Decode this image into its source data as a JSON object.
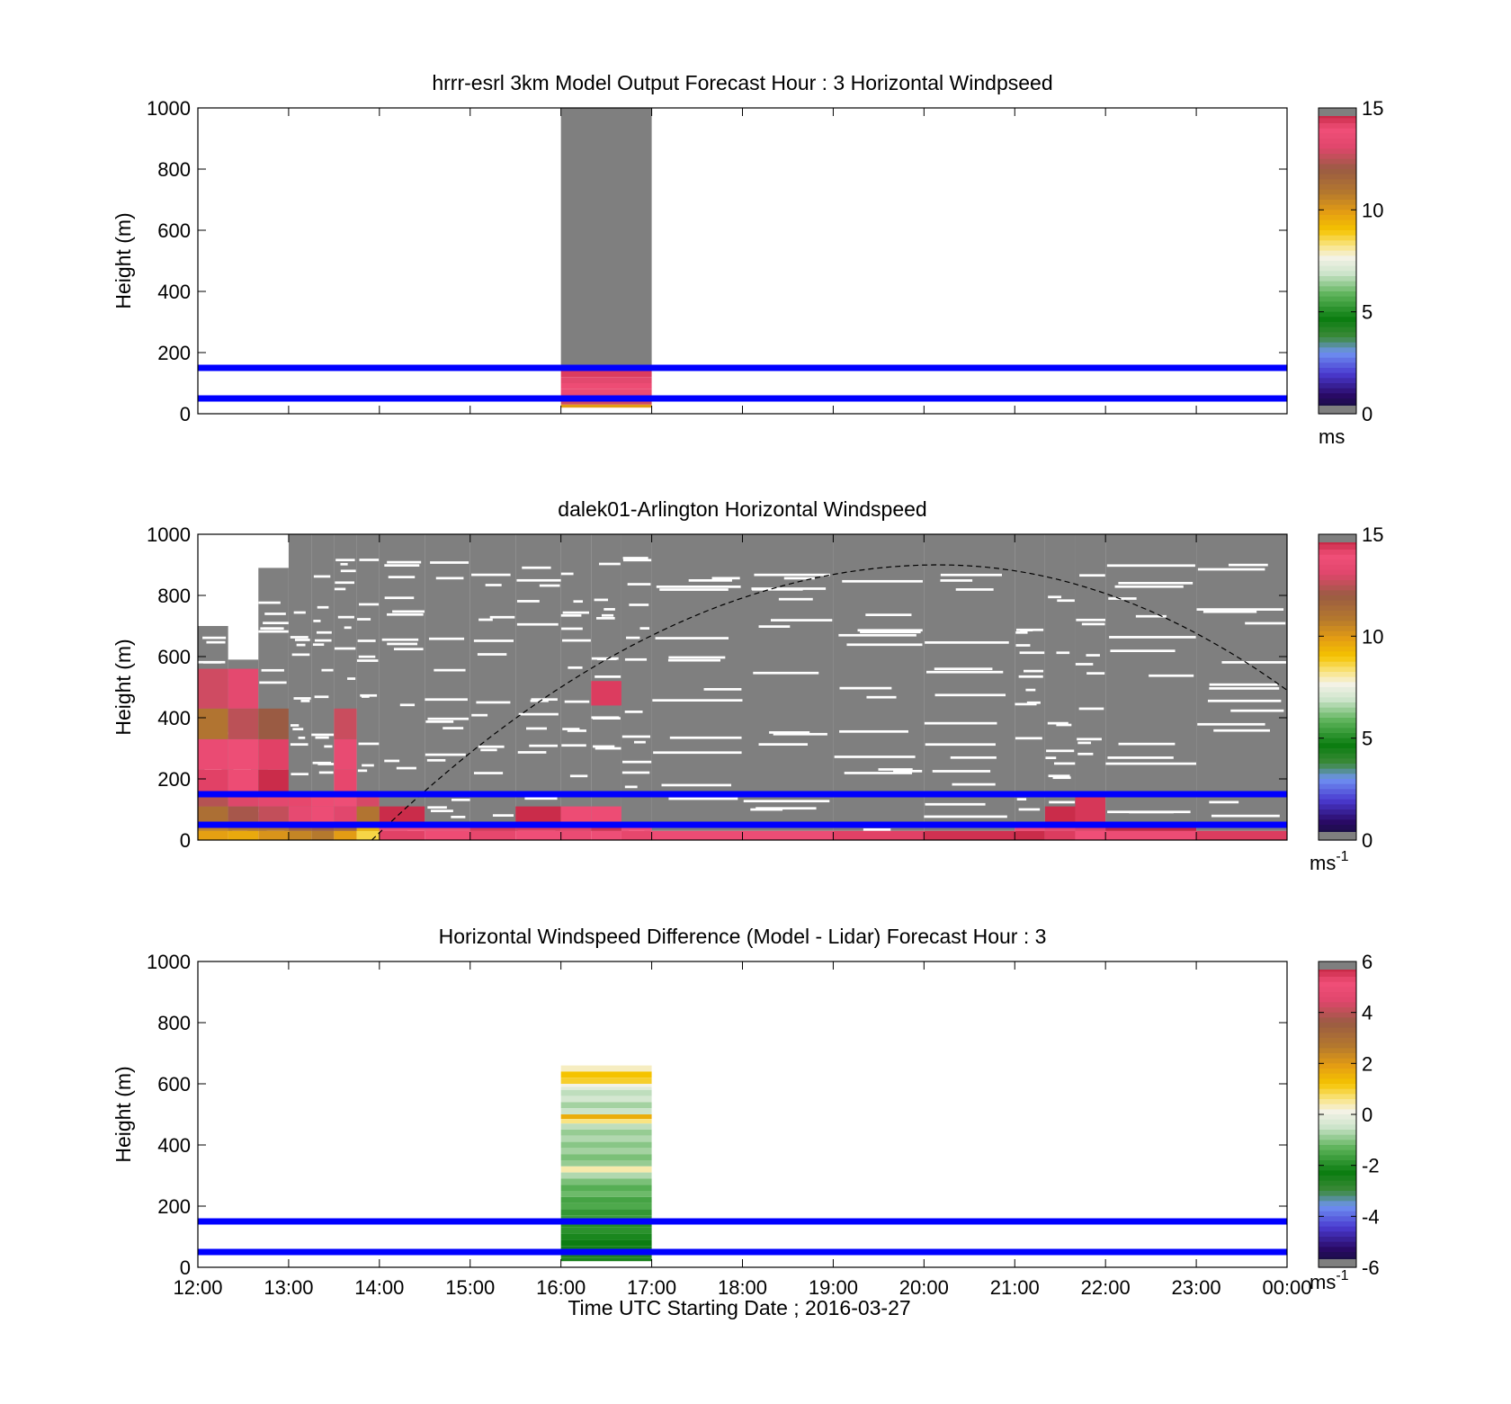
{
  "figure": {
    "xlabel": "Time UTC  Starting Date ; 2016-03-27",
    "x_ticks": [
      "12:00",
      "13:00",
      "14:00",
      "15:00",
      "16:00",
      "17:00",
      "18:00",
      "19:00",
      "20:00",
      "21:00",
      "22:00",
      "23:00",
      "00:00"
    ]
  },
  "chart_data": [
    {
      "type": "heatmap",
      "title": "hrrr-esrl 3km Model Output   Forecast Hour : 3 Horizontal Windpseed",
      "ylabel": "Height (m)",
      "xlim": [
        "12:00",
        "00:00"
      ],
      "ylim": [
        0,
        1000
      ],
      "y_ticks": [
        0,
        200,
        400,
        600,
        800,
        1000
      ],
      "colorbar": {
        "min": 0,
        "max": 15,
        "ticks": [
          0,
          5,
          10,
          15
        ],
        "unit": "ms",
        "unit_sup": ""
      },
      "reference_lines_m": [
        50,
        150
      ],
      "columns": [
        {
          "x_start": "16:00",
          "x_end": "17:00",
          "cells": [
            {
              "y0": 160,
              "y1": 1000,
              "value": "missing"
            },
            {
              "y0": 140,
              "y1": 160,
              "value": 13.5
            },
            {
              "y0": 120,
              "y1": 140,
              "value": 14.3
            },
            {
              "y0": 100,
              "y1": 120,
              "value": 13.2
            },
            {
              "y0": 80,
              "y1": 100,
              "value": 14.0
            },
            {
              "y0": 60,
              "y1": 80,
              "value": 13.6
            },
            {
              "y0": 40,
              "y1": 60,
              "value": 13.1
            },
            {
              "y0": 30,
              "y1": 40,
              "value": 12.8
            },
            {
              "y0": 20,
              "y1": 30,
              "value": 9.9
            }
          ]
        }
      ]
    },
    {
      "type": "heatmap",
      "title": "dalek01-Arlington  Horizontal Windspeed",
      "ylabel": "Height (m)",
      "xlim": [
        "12:00",
        "00:00"
      ],
      "ylim": [
        0,
        1000
      ],
      "y_ticks": [
        0,
        200,
        400,
        600,
        800,
        1000
      ],
      "colorbar": {
        "min": 0,
        "max": 15,
        "ticks": [
          0,
          5,
          10,
          15
        ],
        "unit": "ms",
        "unit_sup": "-1"
      },
      "reference_lines_m": [
        50,
        150
      ],
      "curve_peak": {
        "time": "20:10",
        "height": 900
      },
      "curve_ends": [
        {
          "time": "13:55",
          "height": 0
        },
        {
          "time": "00:00",
          "height": 490
        }
      ],
      "columns": [
        {
          "x_start": "12:00",
          "x_end": "12:20",
          "top": 700,
          "low_profile": [
            [
              0,
              30,
              9.8
            ],
            [
              30,
              60,
              10.5
            ],
            [
              60,
              110,
              11.2
            ],
            [
              110,
              160,
              12.4
            ],
            [
              160,
              230,
              14.2
            ],
            [
              230,
              330,
              13.6
            ],
            [
              330,
              430,
              11.0
            ],
            [
              430,
              560,
              12.8
            ]
          ]
        },
        {
          "x_start": "12:20",
          "x_end": "12:40",
          "top": 590,
          "low_profile": [
            [
              0,
              30,
              9.6
            ],
            [
              30,
              60,
              10.8
            ],
            [
              60,
              110,
              12.2
            ],
            [
              110,
              160,
              13.0
            ],
            [
              160,
              230,
              14.0
            ],
            [
              230,
              330,
              13.8
            ],
            [
              330,
              430,
              12.5
            ],
            [
              430,
              560,
              13.3
            ]
          ]
        },
        {
          "x_start": "12:40",
          "x_end": "13:00",
          "top": 890,
          "low_profile": [
            [
              0,
              30,
              10.1
            ],
            [
              30,
              60,
              11.0
            ],
            [
              60,
              110,
              12.6
            ],
            [
              110,
              160,
              13.2
            ],
            [
              160,
              230,
              14.6
            ],
            [
              230,
              330,
              14.2
            ],
            [
              330,
              430,
              12.0
            ]
          ]
        },
        {
          "x_start": "13:00",
          "x_end": "13:15",
          "top": 1000,
          "low_profile": [
            [
              0,
              30,
              10.5
            ],
            [
              30,
              60,
              11.8
            ],
            [
              60,
              110,
              13.4
            ],
            [
              110,
              160,
              14.1
            ]
          ]
        },
        {
          "x_start": "13:15",
          "x_end": "13:30",
          "top": 1000,
          "low_profile": [
            [
              0,
              30,
              10.8
            ],
            [
              30,
              60,
              12.0
            ],
            [
              60,
              110,
              13.7
            ],
            [
              110,
              160,
              14.0
            ]
          ]
        },
        {
          "x_start": "13:30",
          "x_end": "13:45",
          "top": 1000,
          "low_profile": [
            [
              0,
              30,
              9.9
            ],
            [
              30,
              60,
              11.5
            ],
            [
              60,
              110,
              13.1
            ],
            [
              110,
              160,
              13.8
            ],
            [
              160,
              230,
              14.1
            ],
            [
              230,
              330,
              13.5
            ],
            [
              330,
              430,
              12.7
            ]
          ]
        },
        {
          "x_start": "13:45",
          "x_end": "14:00",
          "top": 1000,
          "low_profile": [
            [
              0,
              30,
              8.6
            ],
            [
              30,
              60,
              9.4
            ],
            [
              60,
              110,
              11.0
            ],
            [
              110,
              160,
              12.9
            ]
          ]
        },
        {
          "x_start": "14:00",
          "x_end": "14:30",
          "top": 1000,
          "low_profile": [
            [
              0,
              30,
              14.2
            ],
            [
              30,
              60,
              13.8
            ],
            [
              60,
              110,
              14.6
            ]
          ]
        },
        {
          "x_start": "14:30",
          "x_end": "15:00",
          "top": 1000,
          "low_profile": [
            [
              0,
              30,
              14.0
            ],
            [
              30,
              60,
              13.7
            ]
          ]
        },
        {
          "x_start": "15:00",
          "x_end": "15:30",
          "top": 1000,
          "low_profile": [
            [
              0,
              30,
              14.1
            ],
            [
              30,
              60,
              14.4
            ]
          ]
        },
        {
          "x_start": "15:30",
          "x_end": "16:00",
          "top": 1000,
          "low_profile": [
            [
              0,
              30,
              13.9
            ],
            [
              30,
              60,
              14.3
            ],
            [
              60,
              110,
              14.6
            ]
          ]
        },
        {
          "x_start": "16:00",
          "x_end": "16:20",
          "top": 1000,
          "low_profile": [
            [
              0,
              30,
              13.6
            ],
            [
              30,
              60,
              14.2
            ],
            [
              60,
              110,
              14.0
            ]
          ]
        },
        {
          "x_start": "16:20",
          "x_end": "16:40",
          "top": 1000,
          "low_profile": [
            [
              0,
              30,
              13.8
            ],
            [
              30,
              60,
              14.5
            ],
            [
              60,
              110,
              14.0
            ],
            [
              440,
              520,
              14.3
            ]
          ]
        },
        {
          "x_start": "16:40",
          "x_end": "17:00",
          "top": 1000,
          "low_profile": [
            [
              0,
              30,
              14.1
            ],
            [
              30,
              60,
              13.9
            ]
          ]
        },
        {
          "x_start": "17:00",
          "x_end": "18:00",
          "top": 1000,
          "low_profile": [
            [
              0,
              30,
              14.0
            ]
          ]
        },
        {
          "x_start": "18:00",
          "x_end": "19:00",
          "top": 1000,
          "low_profile": [
            [
              0,
              30,
              13.7
            ]
          ]
        },
        {
          "x_start": "19:00",
          "x_end": "20:00",
          "top": 1000,
          "low_profile": [
            [
              0,
              30,
              14.2
            ]
          ]
        },
        {
          "x_start": "20:00",
          "x_end": "21:00",
          "top": 1000,
          "low_profile": [
            [
              0,
              30,
              14.5
            ]
          ]
        },
        {
          "x_start": "21:00",
          "x_end": "21:20",
          "top": 1000,
          "low_profile": [
            [
              0,
              30,
              14.6
            ],
            [
              30,
              60,
              14.0
            ]
          ]
        },
        {
          "x_start": "21:20",
          "x_end": "21:40",
          "top": 1000,
          "low_profile": [
            [
              0,
              30,
              14.3
            ],
            [
              30,
              60,
              14.1
            ],
            [
              60,
              110,
              14.6
            ]
          ]
        },
        {
          "x_start": "21:40",
          "x_end": "22:00",
          "top": 1000,
          "low_profile": [
            [
              0,
              30,
              13.9
            ],
            [
              30,
              60,
              14.2
            ],
            [
              60,
              140,
              14.4
            ]
          ]
        },
        {
          "x_start": "22:00",
          "x_end": "23:00",
          "top": 1000,
          "low_profile": [
            [
              0,
              30,
              14.0
            ],
            [
              30,
              60,
              14.7
            ]
          ]
        },
        {
          "x_start": "23:00",
          "x_end": "00:00",
          "top": 1000,
          "low_profile": [
            [
              0,
              30,
              14.3
            ]
          ]
        }
      ]
    },
    {
      "type": "heatmap",
      "title": "Horizontal Windspeed Difference (Model - Lidar) Forecast Hour : 3",
      "ylabel": "Height (m)",
      "xlim": [
        "12:00",
        "00:00"
      ],
      "ylim": [
        0,
        1000
      ],
      "y_ticks": [
        0,
        200,
        400,
        600,
        800,
        1000
      ],
      "colorbar": {
        "min": -6,
        "max": 6,
        "ticks": [
          -6,
          -4,
          -2,
          0,
          2,
          4,
          6
        ],
        "unit": "ms",
        "unit_sup": "-1"
      },
      "reference_lines_m": [
        50,
        150
      ],
      "columns": [
        {
          "x_start": "16:00",
          "x_end": "17:00",
          "profile": [
            [
              640,
              660,
              0.3
            ],
            [
              620,
              640,
              1.2
            ],
            [
              600,
              620,
              1.0
            ],
            [
              590,
              600,
              0.1
            ],
            [
              580,
              590,
              -0.2
            ],
            [
              560,
              580,
              -0.6
            ],
            [
              540,
              560,
              -0.4
            ],
            [
              520,
              540,
              -0.8
            ],
            [
              500,
              520,
              -0.5
            ],
            [
              485,
              500,
              1.6
            ],
            [
              470,
              485,
              0.6
            ],
            [
              450,
              470,
              -0.6
            ],
            [
              430,
              450,
              -0.9
            ],
            [
              410,
              430,
              -0.7
            ],
            [
              390,
              410,
              -1.0
            ],
            [
              370,
              390,
              -0.8
            ],
            [
              350,
              370,
              -1.1
            ],
            [
              330,
              350,
              -0.9
            ],
            [
              310,
              330,
              0.4
            ],
            [
              290,
              310,
              -0.7
            ],
            [
              270,
              290,
              -1.1
            ],
            [
              250,
              270,
              -1.4
            ],
            [
              230,
              250,
              -1.2
            ],
            [
              210,
              230,
              -1.6
            ],
            [
              190,
              210,
              -1.5
            ],
            [
              170,
              190,
              -1.8
            ],
            [
              150,
              170,
              -1.7
            ],
            [
              130,
              150,
              -2.0
            ],
            [
              110,
              130,
              -1.9
            ],
            [
              90,
              110,
              -2.1
            ],
            [
              70,
              90,
              -2.3
            ],
            [
              50,
              70,
              -2.4
            ],
            [
              30,
              50,
              -2.6
            ],
            [
              20,
              30,
              -2.5
            ]
          ]
        }
      ]
    }
  ]
}
